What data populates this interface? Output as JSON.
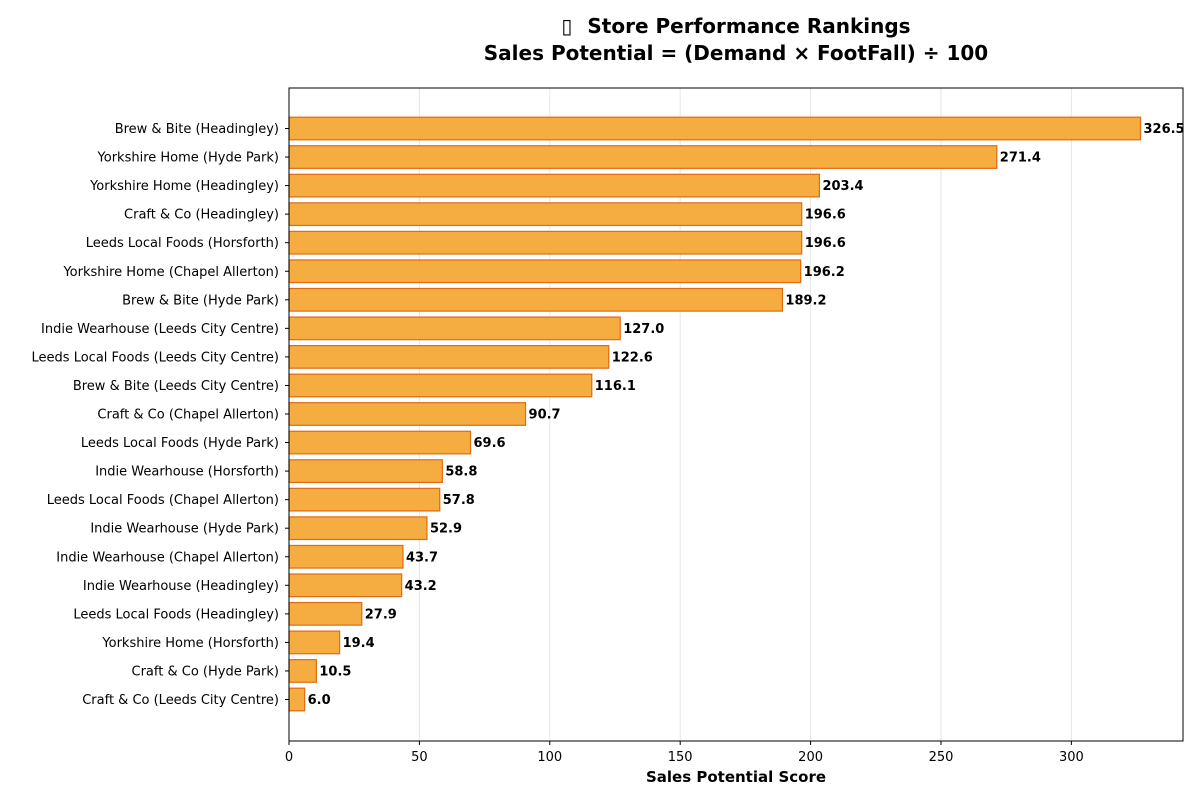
{
  "chart_data": {
    "type": "bar",
    "orientation": "horizontal",
    "title_icon": "chart-emoji-icon",
    "title_icon_glyph": "▯",
    "title_line1": "Store Performance Rankings",
    "title_line2": "Sales Potential = (Demand × FootFall) ÷ 100",
    "xlabel": "Sales Potential Score",
    "ylabel": "",
    "xlim": [
      0,
      342.8
    ],
    "xticks": [
      0,
      50,
      100,
      150,
      200,
      250,
      300
    ],
    "grid": "vertical",
    "bar_color": "#F5AC40",
    "bar_edge_color": "#E26A12",
    "categories": [
      "Brew & Bite (Headingley)",
      "Yorkshire Home (Hyde Park)",
      "Yorkshire Home (Headingley)",
      "Craft & Co (Headingley)",
      "Leeds Local Foods (Horsforth)",
      "Yorkshire Home (Chapel Allerton)",
      "Brew & Bite (Hyde Park)",
      "Indie Wearhouse (Leeds City Centre)",
      "Leeds Local Foods (Leeds City Centre)",
      "Brew & Bite (Leeds City Centre)",
      "Craft & Co (Chapel Allerton)",
      "Leeds Local Foods (Hyde Park)",
      "Indie Wearhouse (Horsforth)",
      "Leeds Local Foods (Chapel Allerton)",
      "Indie Wearhouse (Hyde Park)",
      "Indie Wearhouse (Chapel Allerton)",
      "Indie Wearhouse (Headingley)",
      "Leeds Local Foods (Headingley)",
      "Yorkshire Home (Horsforth)",
      "Craft & Co (Hyde Park)",
      "Craft & Co (Leeds City Centre)"
    ],
    "values": [
      326.5,
      271.4,
      203.4,
      196.6,
      196.6,
      196.2,
      189.2,
      127.0,
      122.6,
      116.1,
      90.7,
      69.6,
      58.8,
      57.8,
      52.9,
      43.7,
      43.2,
      27.9,
      19.4,
      10.5,
      6.0
    ],
    "value_labels": [
      "326.5",
      "271.4",
      "203.4",
      "196.6",
      "196.6",
      "196.2",
      "189.2",
      "127.0",
      "122.6",
      "116.1",
      "90.7",
      "69.6",
      "58.8",
      "57.8",
      "52.9",
      "43.7",
      "43.2",
      "27.9",
      "19.4",
      "10.5",
      "6.0"
    ]
  }
}
